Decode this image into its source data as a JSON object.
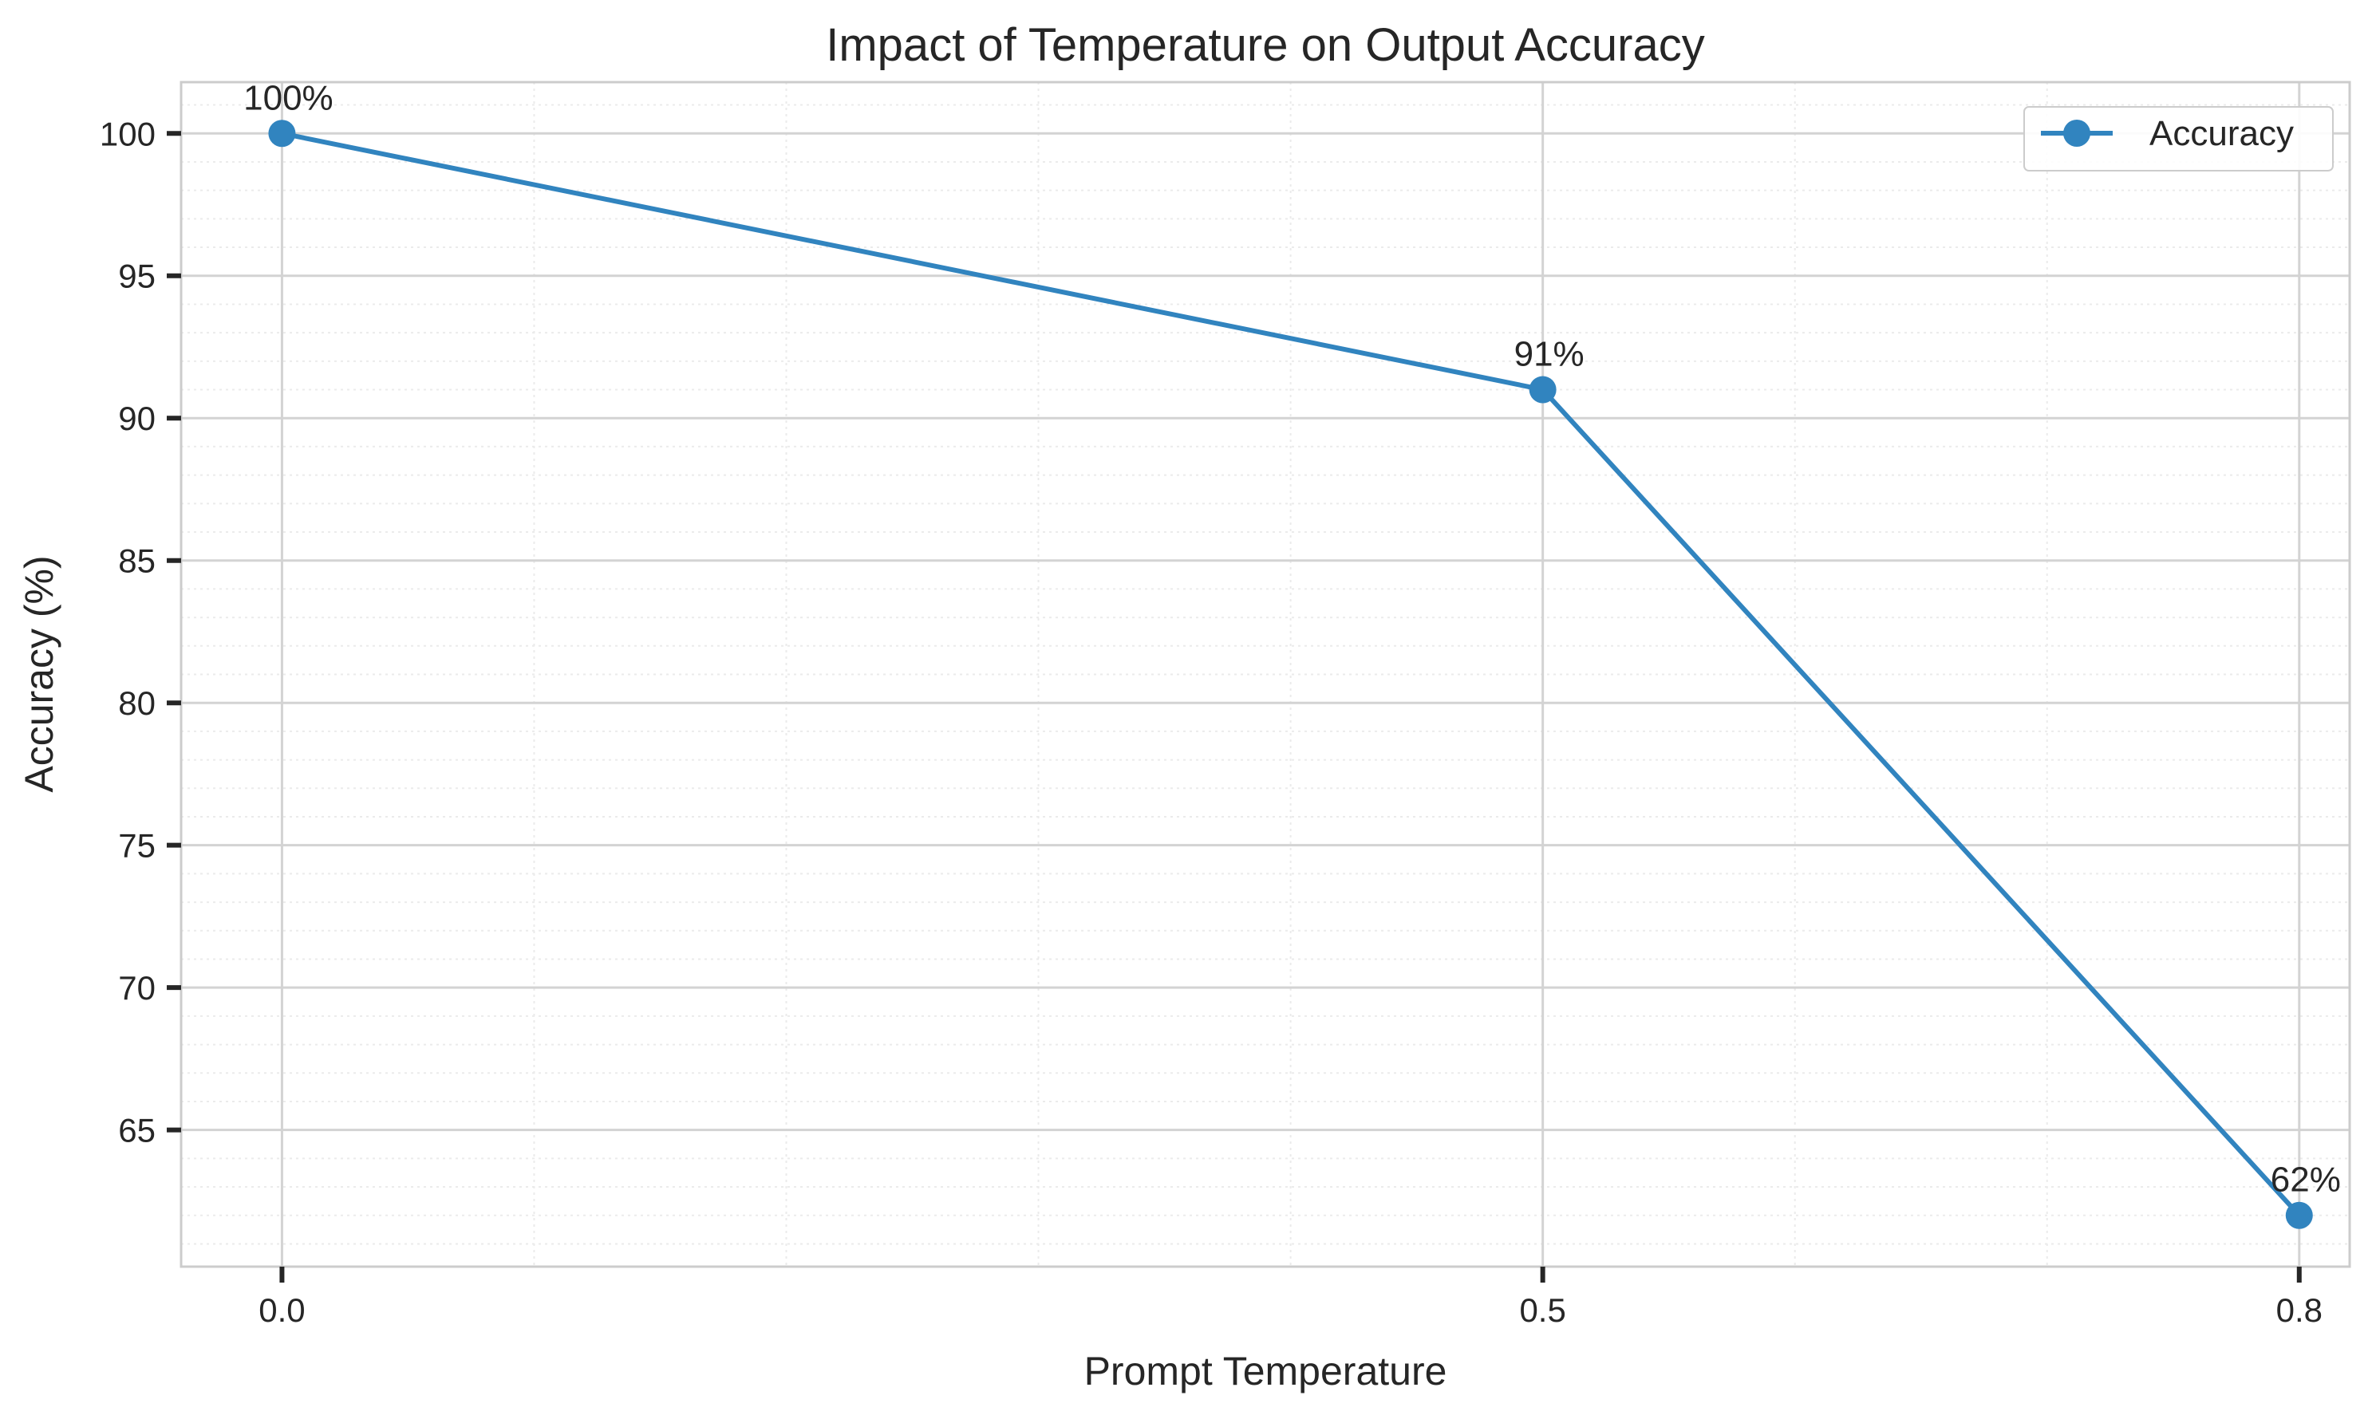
{
  "chart_data": {
    "type": "line",
    "title": "Impact of Temperature on Output Accuracy",
    "xlabel": "Prompt Temperature",
    "ylabel": "Accuracy (%)",
    "x": [
      0.0,
      0.5,
      0.8
    ],
    "x_tick_labels": [
      "0.0",
      "0.5",
      "0.8"
    ],
    "series": [
      {
        "name": "Accuracy",
        "values": [
          100,
          91,
          62
        ],
        "data_labels": [
          "100%",
          "91%",
          "62%"
        ],
        "color": "#3184bf"
      }
    ],
    "xlim": [
      -0.04,
      0.82
    ],
    "ylim": [
      60.2,
      101.8
    ],
    "y_ticks": [
      65,
      70,
      75,
      80,
      85,
      90,
      95,
      100
    ],
    "y_tick_labels": [
      "65",
      "70",
      "75",
      "80",
      "85",
      "90",
      "95",
      "100"
    ],
    "grid": true,
    "minor_grid": true,
    "legend_position": "top-right"
  }
}
